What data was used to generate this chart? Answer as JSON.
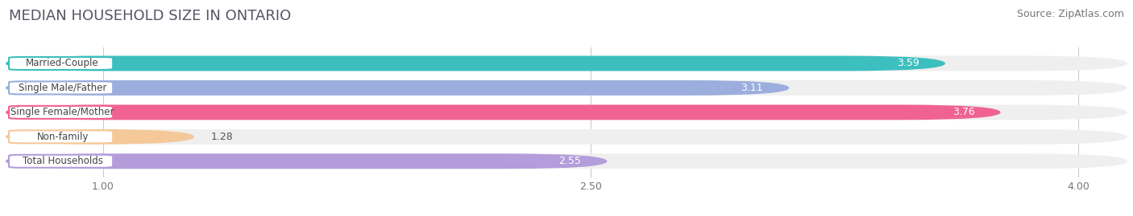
{
  "title": "MEDIAN HOUSEHOLD SIZE IN ONTARIO",
  "source": "Source: ZipAtlas.com",
  "categories": [
    "Married-Couple",
    "Single Male/Father",
    "Single Female/Mother",
    "Non-family",
    "Total Households"
  ],
  "values": [
    3.59,
    3.11,
    3.76,
    1.28,
    2.55
  ],
  "bar_colors": [
    "#3dbfbf",
    "#9baedd",
    "#f06292",
    "#f5c89a",
    "#b39ddb"
  ],
  "label_border_colors": [
    "#3dbfbf",
    "#9baedd",
    "#f06292",
    "#f5c89a",
    "#b39ddb"
  ],
  "bar_bg_color": "#efefef",
  "xlim_min": 0.7,
  "xlim_max": 4.15,
  "xstart": 0.7,
  "xticks": [
    1.0,
    2.5,
    4.0
  ],
  "title_fontsize": 13,
  "source_fontsize": 9,
  "label_fontsize": 8.5,
  "value_fontsize": 9,
  "background_color": "#ffffff",
  "bar_height": 0.62,
  "bar_gap": 1.0,
  "value_white_threshold": 2.5
}
